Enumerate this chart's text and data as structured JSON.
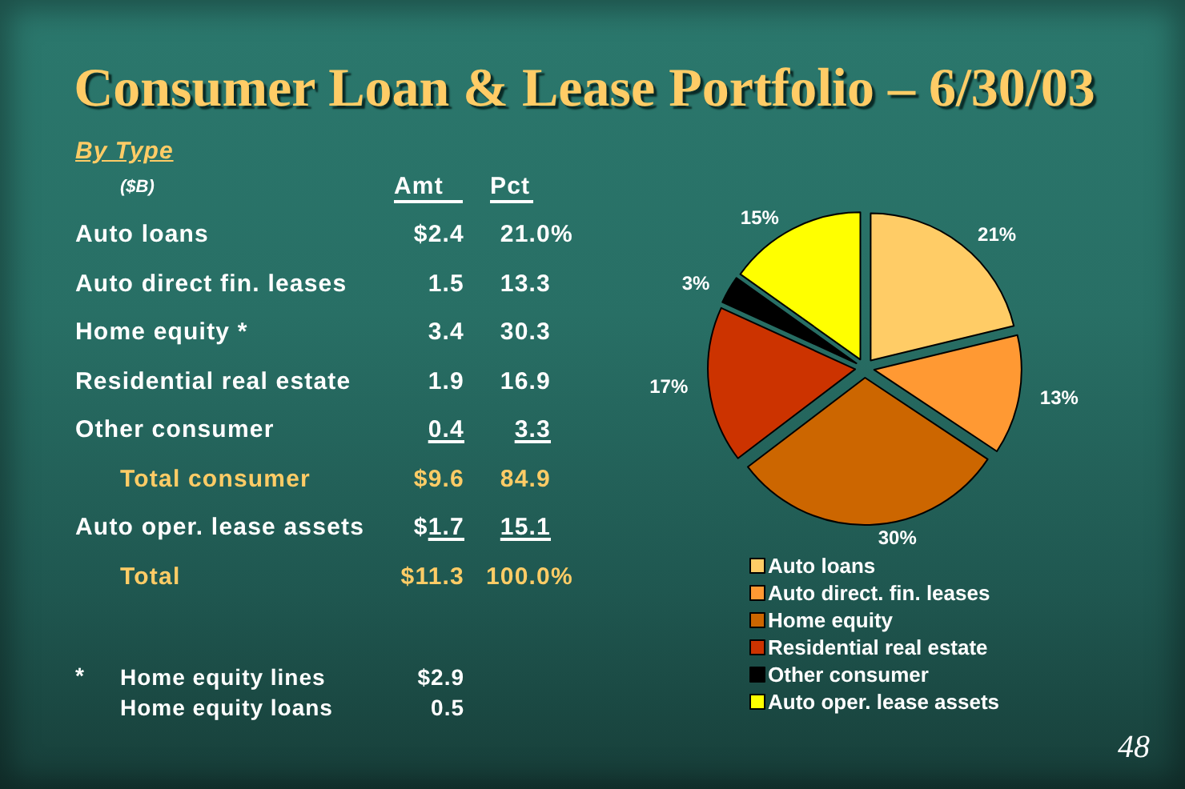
{
  "chart_data": [
    {
      "type": "other",
      "title": "Consumer Loan & Lease Portfolio – 6/30/03",
      "subtitle": "By Type",
      "annotations": [
        "($B)",
        "Amt",
        "Pct",
        "Auto loans",
        "$2.4",
        "21.0%",
        "Auto direct fin. leases",
        "1.5",
        "13.3",
        "Home equity *",
        "3.4",
        "30.3",
        "Residential real estate",
        "1.9",
        "16.9",
        "Other consumer",
        "0.4",
        "3.3",
        "Total consumer",
        "$9.6",
        "84.9",
        "Auto oper. lease assets",
        "$1.7",
        "15.1",
        "Total",
        "$11.3",
        "100.0%"
      ]
    },
    {
      "type": "other",
      "annotations": [
        "*",
        "Home equity lines",
        "$2.9",
        "Home equity loans",
        "0.5"
      ]
    },
    {
      "type": "pie",
      "categories": [
        "Auto loans",
        "Auto direct. fin. leases",
        "Home equity",
        "Residential real estate",
        "Other consumer",
        "Auto oper. lease assets"
      ],
      "values": [
        21,
        13,
        30,
        17,
        3,
        15
      ],
      "value_labels": [
        "21%",
        "13%",
        "30%",
        "17%",
        "3%",
        "15%"
      ],
      "colors": [
        "#ffcc66",
        "#ff9933",
        "#cc6600",
        "#cc3300",
        "#000000",
        "#ffff00"
      ],
      "legend": "bottom",
      "annotations": [
        "48"
      ]
    }
  ]
}
